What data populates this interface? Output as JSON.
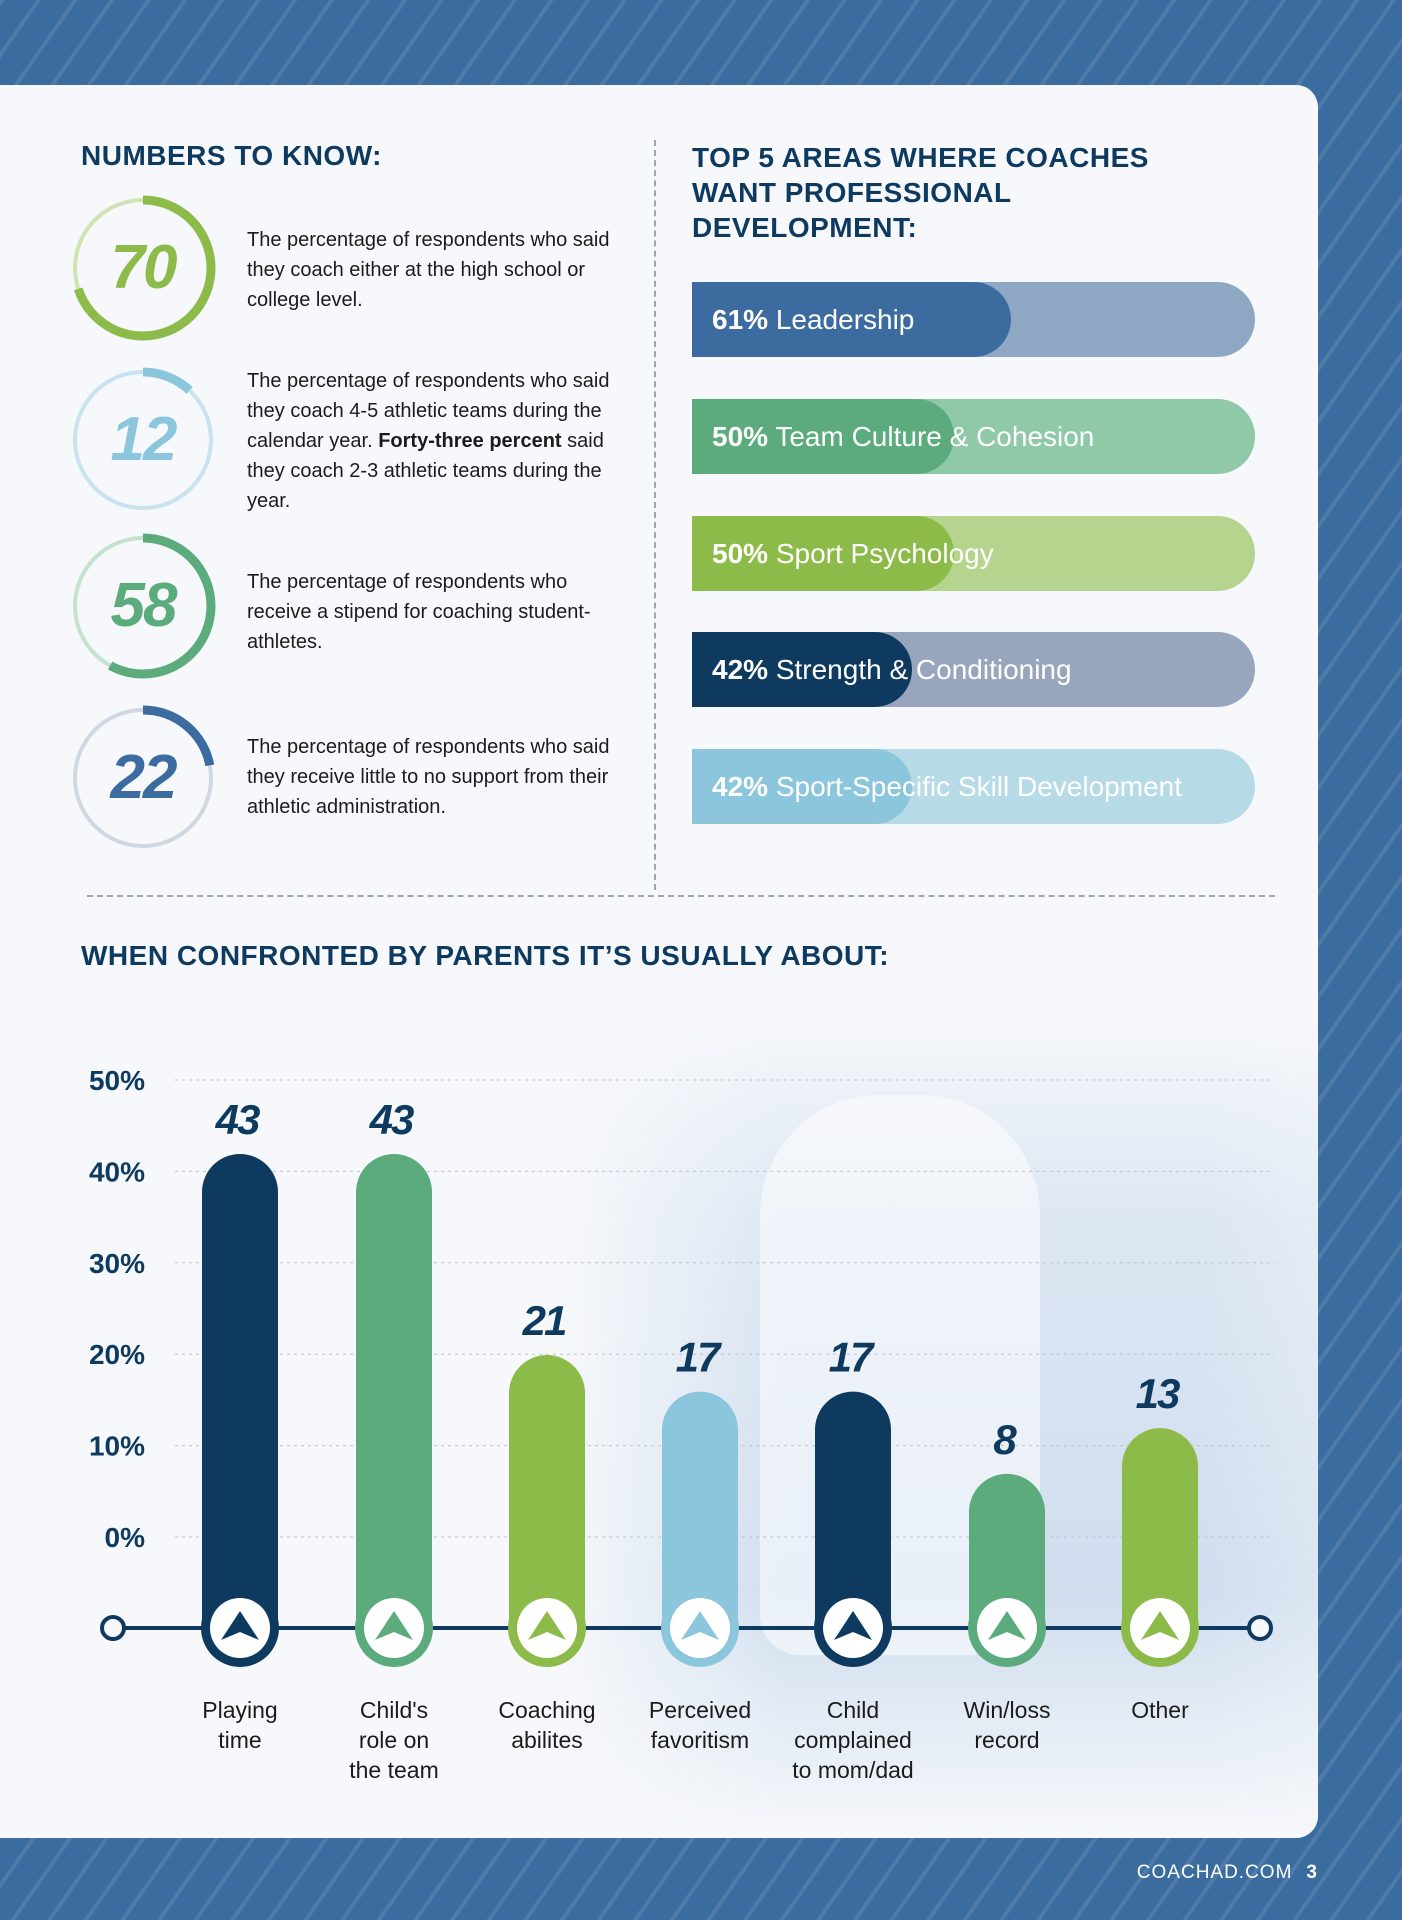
{
  "numbers": {
    "title": "NUMBERS TO KNOW:",
    "items": [
      {
        "value": "70",
        "percent": 70,
        "color": "#8dbb4a",
        "track": "#cfe3b3",
        "text_parts": [
          "The percentage of respondents who said they coach either at the high school or college level."
        ]
      },
      {
        "value": "12",
        "percent": 12,
        "color": "#8cc6dc",
        "track": "#c9e3ee",
        "text_before": "The percentage of respondents who said they coach 4-5 athletic teams during the calendar year. ",
        "text_bold": "Forty-three percent",
        "text_after": " said they coach 2-3 athletic teams during the year."
      },
      {
        "value": "58",
        "percent": 58,
        "color": "#5cab7d",
        "track": "#c4e2cf",
        "text_parts": [
          "The percentage of respondents who receive a stipend for coaching student-athletes."
        ]
      },
      {
        "value": "22",
        "percent": 22,
        "color": "#3c6c9f",
        "track": "#cfd8e2",
        "text_parts": [
          "The percentage of respondents who said they receive little to no support from their athletic administration."
        ]
      }
    ]
  },
  "development": {
    "title_lines": [
      "TOP 5 AREAS WHERE COACHES",
      "WANT PROFESSIONAL",
      "DEVELOPMENT:"
    ],
    "bars": [
      {
        "pct_label": "61%",
        "name": "Leadership",
        "value": 61,
        "color": "#3c6c9f",
        "track": "#8ea8c4"
      },
      {
        "pct_label": "50%",
        "name": "Team Culture & Cohesion",
        "value": 50,
        "color": "#5cab7d",
        "track": "#8fc9a7"
      },
      {
        "pct_label": "50%",
        "name": "Sport Psychology",
        "value": 50,
        "color": "#8dbb4a",
        "track": "#b5d48d"
      },
      {
        "pct_label": "42%",
        "name": "Strength & Conditioning",
        "value": 42,
        "color": "#0e3a5f",
        "track": "#97a6bd"
      },
      {
        "pct_label": "42%",
        "name": "Sport-Specific Skill Development",
        "value": 42,
        "color": "#8cc6dc",
        "track": "#b6dbe7"
      }
    ]
  },
  "chart_data": {
    "type": "bar",
    "title": "WHEN CONFRONTED BY PARENTS IT’S USUALLY ABOUT:",
    "categories": [
      [
        "Playing",
        "time"
      ],
      [
        "Child's",
        "role on",
        "the team"
      ],
      [
        "Coaching",
        "abilites"
      ],
      [
        "Perceived",
        "favoritism"
      ],
      [
        "Child",
        "complained",
        "to mom/dad"
      ],
      [
        "Win/loss",
        "record"
      ],
      [
        "Other"
      ]
    ],
    "values": [
      43,
      43,
      21,
      17,
      17,
      8,
      13
    ],
    "value_labels": [
      "43",
      "43",
      "21",
      "17",
      "17",
      "8",
      "13"
    ],
    "colors": [
      "#0e3a5f",
      "#5cab7d",
      "#8dbb4a",
      "#8cc6dc",
      "#0e3a5f",
      "#5cab7d",
      "#8dbb4a"
    ],
    "yticks": [
      "50%",
      "40%",
      "30%",
      "20%",
      "10%",
      "0%"
    ],
    "ylim": [
      0,
      50
    ],
    "xlabel": "",
    "ylabel": ""
  },
  "footer": {
    "site": "COACHAD.COM",
    "page": "3"
  }
}
